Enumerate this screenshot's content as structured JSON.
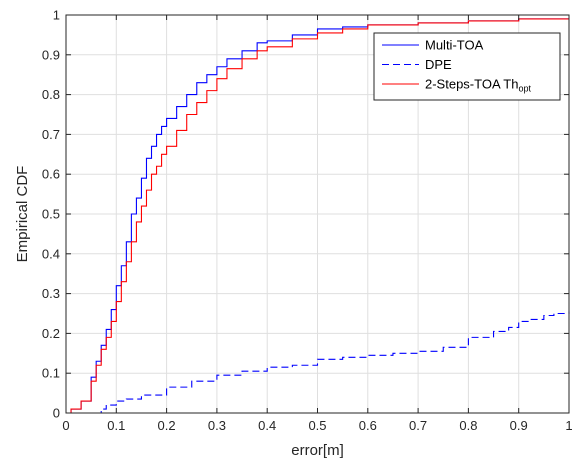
{
  "chart_data": {
    "type": "line",
    "xlabel": "error[m]",
    "ylabel": "Empirical CDF",
    "xlim": [
      0,
      1
    ],
    "ylim": [
      0,
      1
    ],
    "grid": true,
    "legend_position": "top-right",
    "x_ticks": [
      "0",
      "0.1",
      "0.2",
      "0.3",
      "0.4",
      "0.5",
      "0.6",
      "0.7",
      "0.8",
      "0.9",
      "1"
    ],
    "y_ticks": [
      "0",
      "0.1",
      "0.2",
      "0.3",
      "0.4",
      "0.5",
      "0.6",
      "0.7",
      "0.8",
      "0.9",
      "1"
    ],
    "series": [
      {
        "name": "Multi-TOA",
        "color": "#0000ff",
        "dash": "solid",
        "x": [
          0,
          0.01,
          0.03,
          0.05,
          0.06,
          0.07,
          0.08,
          0.09,
          0.1,
          0.11,
          0.12,
          0.13,
          0.14,
          0.15,
          0.16,
          0.17,
          0.18,
          0.19,
          0.2,
          0.22,
          0.24,
          0.26,
          0.28,
          0.3,
          0.32,
          0.35,
          0.38,
          0.4,
          0.45,
          0.5,
          0.55,
          0.6,
          0.7,
          0.8,
          0.9,
          1.0
        ],
        "y": [
          0,
          0.01,
          0.03,
          0.09,
          0.13,
          0.17,
          0.21,
          0.26,
          0.32,
          0.37,
          0.43,
          0.5,
          0.54,
          0.59,
          0.64,
          0.67,
          0.7,
          0.72,
          0.74,
          0.77,
          0.8,
          0.83,
          0.85,
          0.87,
          0.89,
          0.91,
          0.93,
          0.935,
          0.95,
          0.965,
          0.97,
          0.975,
          0.98,
          0.985,
          0.99,
          0.99
        ]
      },
      {
        "name": "DPE",
        "color": "#0000ff",
        "dash": "dashed",
        "x": [
          0.06,
          0.07,
          0.08,
          0.1,
          0.12,
          0.15,
          0.2,
          0.25,
          0.3,
          0.35,
          0.4,
          0.45,
          0.5,
          0.55,
          0.6,
          0.65,
          0.7,
          0.75,
          0.8,
          0.85,
          0.88,
          0.9,
          0.92,
          0.95,
          0.97,
          1.0
        ],
        "y": [
          0,
          0.01,
          0.02,
          0.03,
          0.035,
          0.045,
          0.065,
          0.08,
          0.095,
          0.105,
          0.115,
          0.12,
          0.135,
          0.14,
          0.145,
          0.15,
          0.155,
          0.165,
          0.19,
          0.205,
          0.215,
          0.23,
          0.235,
          0.245,
          0.25,
          0.255
        ]
      },
      {
        "name": "2-Steps-TOA Th",
        "name_subscript": "opt",
        "color": "#ff0000",
        "dash": "solid",
        "x": [
          0,
          0.01,
          0.03,
          0.05,
          0.06,
          0.07,
          0.08,
          0.09,
          0.1,
          0.11,
          0.12,
          0.13,
          0.14,
          0.15,
          0.16,
          0.17,
          0.18,
          0.19,
          0.2,
          0.22,
          0.24,
          0.26,
          0.28,
          0.3,
          0.32,
          0.35,
          0.38,
          0.4,
          0.45,
          0.5,
          0.55,
          0.6,
          0.7,
          0.8,
          0.9,
          1.0
        ],
        "y": [
          0,
          0.01,
          0.03,
          0.08,
          0.12,
          0.16,
          0.19,
          0.23,
          0.28,
          0.33,
          0.38,
          0.43,
          0.48,
          0.52,
          0.56,
          0.6,
          0.62,
          0.65,
          0.67,
          0.71,
          0.75,
          0.78,
          0.81,
          0.84,
          0.865,
          0.89,
          0.91,
          0.92,
          0.94,
          0.955,
          0.965,
          0.975,
          0.98,
          0.985,
          0.99,
          0.99
        ]
      }
    ]
  }
}
